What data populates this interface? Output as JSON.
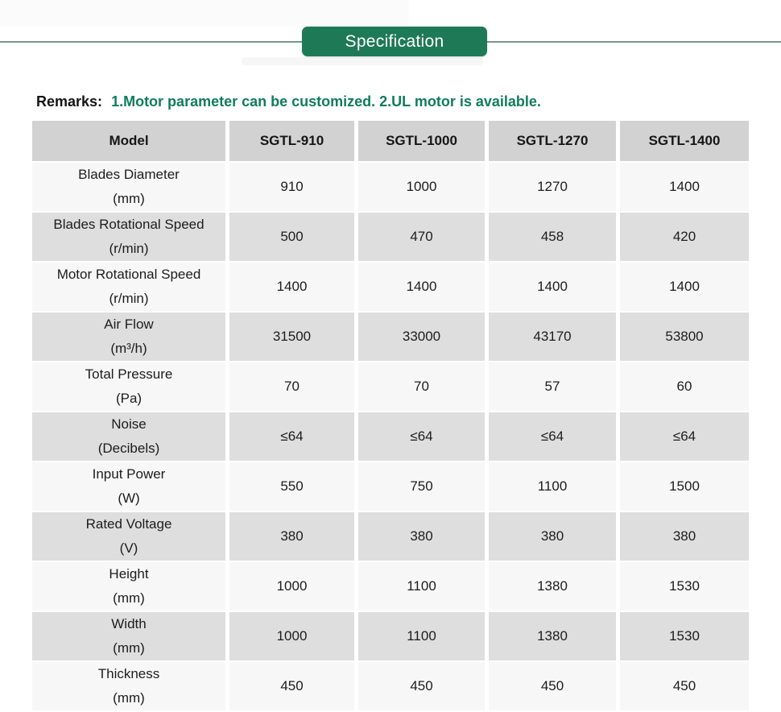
{
  "page": {
    "section_title": "Specification",
    "remarks_label": "Remarks:",
    "remarks_text": "1.Motor parameter can be customized. 2.UL motor is available."
  },
  "colors": {
    "banner_green": "#1e7a56",
    "remarks_green": "#117c5b",
    "divider_green_gray": "#7a958c",
    "header_bg": "#d2d2d2",
    "row_gray": "#dedede",
    "row_light": "#f7f7f7"
  },
  "table": {
    "columns": [
      "Model",
      "SGTL-910",
      "SGTL-1000",
      "SGTL-1270",
      "SGTL-1400"
    ],
    "rows": [
      {
        "label_line1": "Blades Diameter",
        "label_line2": "(mm)",
        "values": [
          "910",
          "1000",
          "1270",
          "1400"
        ]
      },
      {
        "label_line1": "Blades Rotational Speed",
        "label_line2": "(r/min)",
        "values": [
          "500",
          "470",
          "458",
          "420"
        ]
      },
      {
        "label_line1": "Motor Rotational Speed",
        "label_line2": "(r/min)",
        "values": [
          "1400",
          "1400",
          "1400",
          "1400"
        ]
      },
      {
        "label_line1": "Air Flow",
        "label_line2": "(m³/h)",
        "values": [
          "31500",
          "33000",
          "43170",
          "53800"
        ]
      },
      {
        "label_line1": "Total Pressure",
        "label_line2": "(Pa)",
        "values": [
          "70",
          "70",
          "57",
          "60"
        ]
      },
      {
        "label_line1": "Noise",
        "label_line2": "(Decibels)",
        "values": [
          "≤64",
          "≤64",
          "≤64",
          "≤64"
        ]
      },
      {
        "label_line1": "Input Power",
        "label_line2": "(W)",
        "values": [
          "550",
          "750",
          "1100",
          "1500"
        ]
      },
      {
        "label_line1": "Rated Voltage",
        "label_line2": "(V)",
        "values": [
          "380",
          "380",
          "380",
          "380"
        ]
      },
      {
        "label_line1": "Height",
        "label_line2": "(mm)",
        "values": [
          "1000",
          "1100",
          "1380",
          "1530"
        ]
      },
      {
        "label_line1": "Width",
        "label_line2": "(mm)",
        "values": [
          "1000",
          "1100",
          "1380",
          "1530"
        ]
      },
      {
        "label_line1": "Thickness",
        "label_line2": "(mm)",
        "values": [
          "450",
          "450",
          "450",
          "450"
        ]
      }
    ]
  }
}
